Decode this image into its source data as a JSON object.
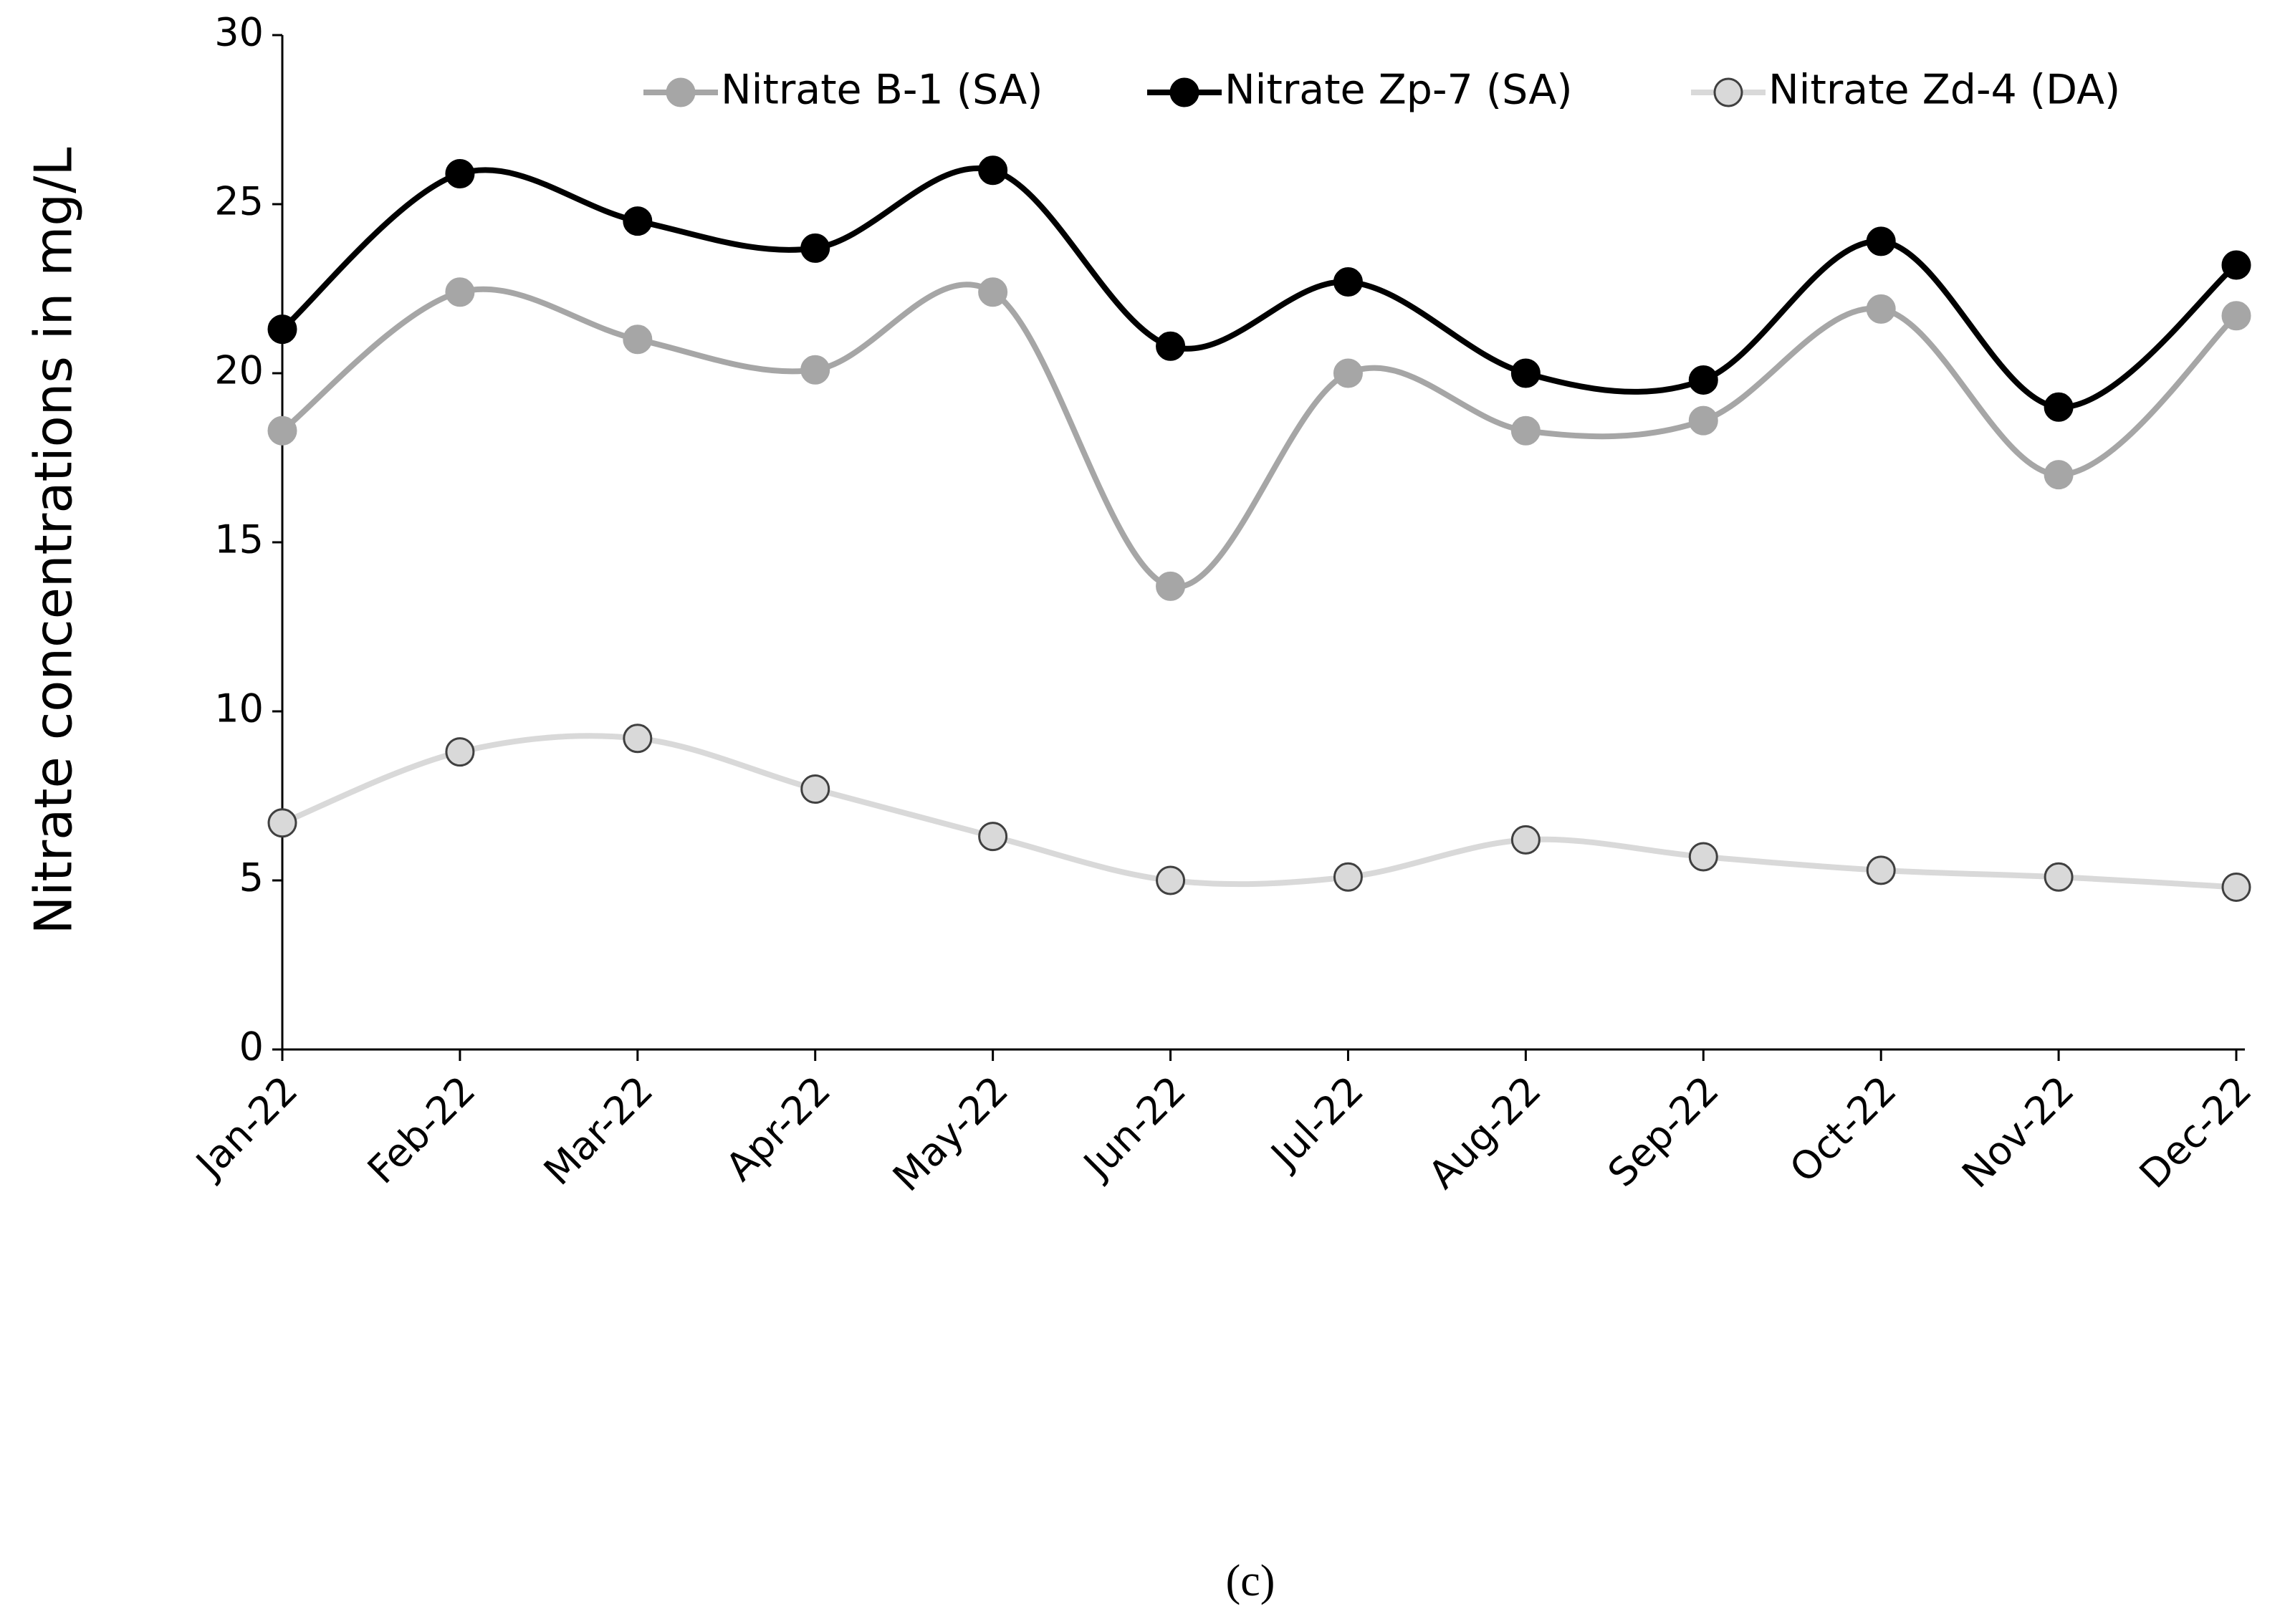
{
  "chart_data": {
    "type": "line",
    "y_label": "Nitrate  concentrations in mg/L",
    "caption": "(c)",
    "categories": [
      "Jan-22",
      "Feb-22",
      "Mar-22",
      "Apr-22",
      "May-22",
      "Jun-22",
      "Jul-22",
      "Aug-22",
      "Sep-22",
      "Oct-22",
      "Nov-22",
      "Dec-22"
    ],
    "series": [
      {
        "name": "Nitrate B-1 (SA)",
        "color": "#a6a6a6",
        "values": [
          18.3,
          22.4,
          21.0,
          20.1,
          22.4,
          13.7,
          20.0,
          18.3,
          18.6,
          21.9,
          17.0,
          21.7
        ]
      },
      {
        "name": "Nitrate Zp-7 (SA)",
        "color": "#000000",
        "values": [
          21.3,
          25.9,
          24.5,
          23.7,
          26.0,
          20.8,
          22.7,
          20.0,
          19.8,
          23.9,
          19.0,
          23.2
        ]
      },
      {
        "name": "Nitrate Zd-4 (DA)",
        "color": "#d9d9d9",
        "marker_edge": "#404040",
        "values": [
          6.7,
          8.8,
          9.2,
          7.7,
          6.3,
          5.0,
          5.1,
          6.2,
          5.7,
          5.3,
          5.1,
          4.8
        ]
      }
    ],
    "ylim": [
      0,
      30
    ],
    "yticks": [
      0,
      5,
      10,
      15,
      20,
      25,
      30
    ],
    "smooth": true,
    "grid": false
  }
}
